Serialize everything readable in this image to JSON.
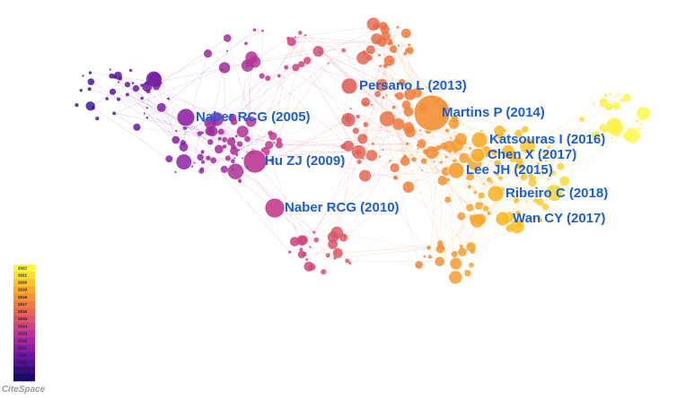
{
  "nodes": [
    {
      "label": "Martins P (2014)"
    },
    {
      "label": "Persano L (2013)"
    },
    {
      "label": "Naber RCG (2005)"
    },
    {
      "label": "Hu ZJ (2009)"
    },
    {
      "label": "Naber RCG (2010)"
    },
    {
      "label": "Katsouras I (2016)"
    },
    {
      "label": "Chen X (2017)"
    },
    {
      "label": "Lee JH (2015)"
    },
    {
      "label": "Ribeiro C (2018)"
    },
    {
      "label": "Wan CY (2017)"
    }
  ],
  "legend": {
    "years": [
      "2022",
      "2021",
      "2020",
      "2019",
      "2018",
      "2017",
      "2016",
      "2015",
      "2014",
      "2013",
      "2012",
      "2011",
      "2010",
      "2009",
      "2008",
      "2007"
    ]
  },
  "logo": "CiteSpace"
}
